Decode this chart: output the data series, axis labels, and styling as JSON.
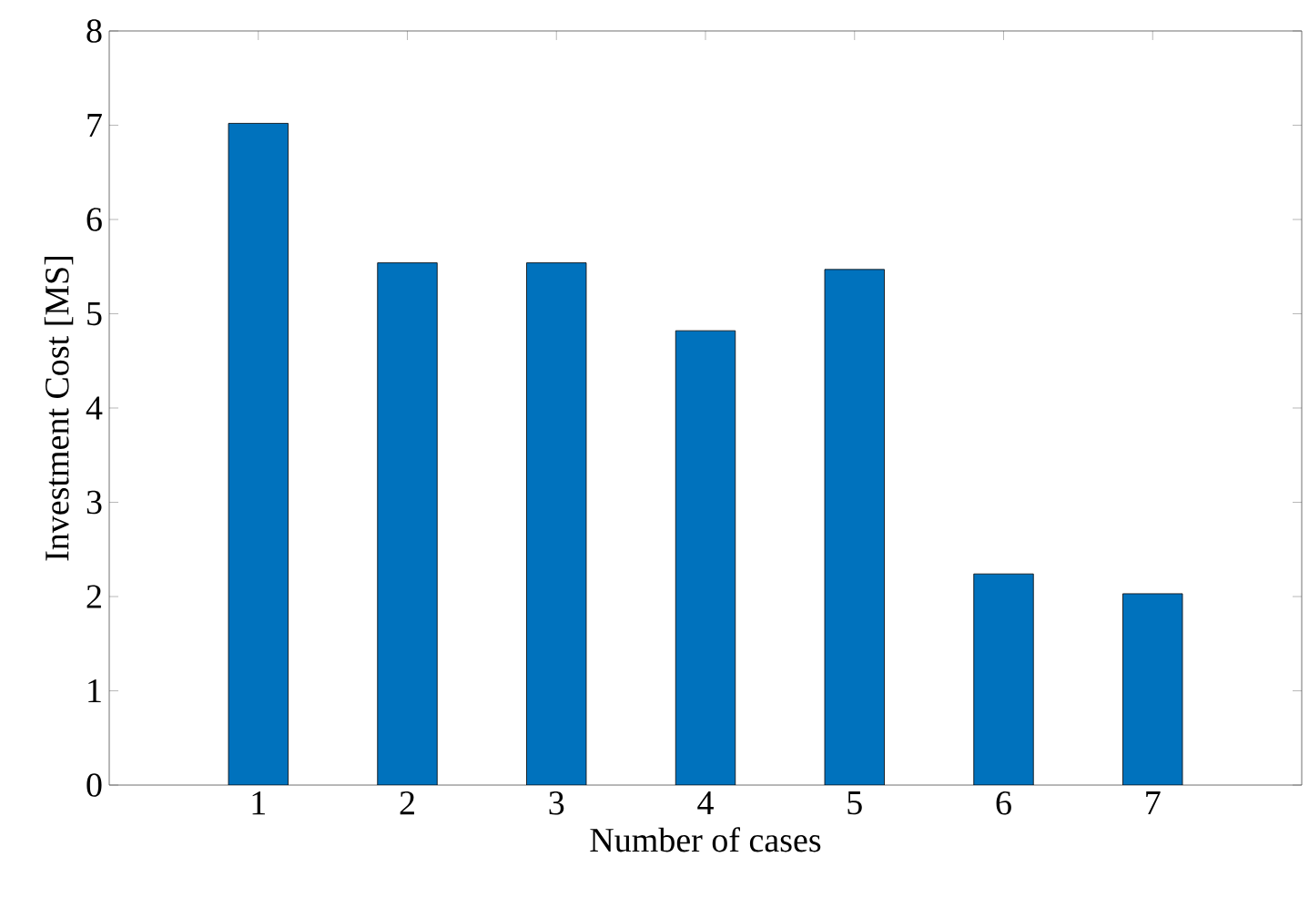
{
  "chart_data": {
    "type": "bar",
    "xlabel": "Number of cases",
    "ylabel": "Investment Cost [MS]",
    "categories": [
      "1",
      "2",
      "3",
      "4",
      "5",
      "6",
      "7"
    ],
    "values": [
      7.02,
      5.54,
      5.54,
      4.82,
      5.47,
      2.24,
      2.03
    ],
    "color": "#0072bd",
    "ylim": [
      0,
      8
    ],
    "yticks": [
      0,
      1,
      2,
      3,
      4,
      5,
      6,
      7,
      8
    ]
  }
}
